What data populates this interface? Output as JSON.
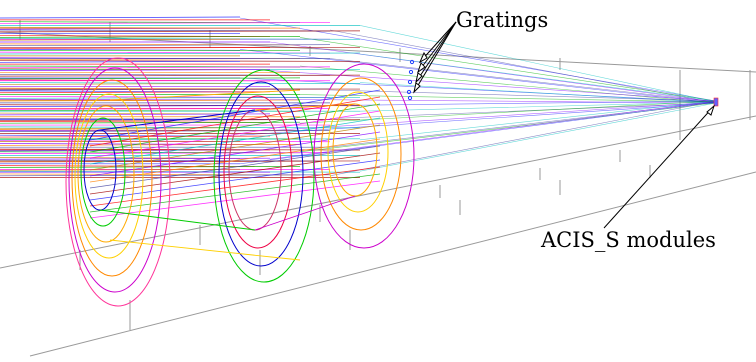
{
  "labels": {
    "gratings": "Gratings",
    "acis": "ACIS_S modules"
  },
  "colors": {
    "grid": "#9a9a9a",
    "ray_palette": [
      "#1a1aff",
      "#ff0000",
      "#00b000",
      "#ff00ff",
      "#00c0c0",
      "#c08000",
      "#8000ff",
      "#ff8000",
      "#4040a0",
      "#a00000"
    ],
    "shell_colors": [
      "#0000cc",
      "#00cc00",
      "#ffaa00",
      "#ffd000",
      "#ff8800",
      "#cc00cc",
      "#ff3399",
      "#cc3366",
      "#ee0044"
    ]
  }
}
